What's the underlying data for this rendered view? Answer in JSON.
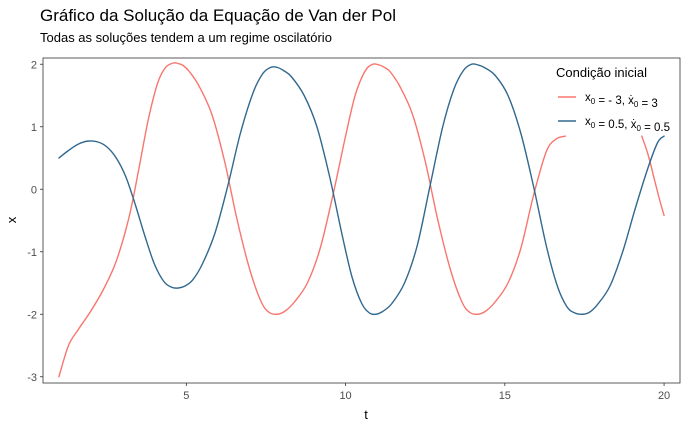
{
  "chart_data": {
    "type": "line",
    "title": "Gráfico da Solução da Equação de Van der Pol",
    "subtitle": "Todas as soluções tendem a um regime oscilatório",
    "xlabel": "t",
    "ylabel": "x",
    "xlim": [
      0.5,
      20.5
    ],
    "ylim": [
      -3.1,
      2.1
    ],
    "x_ticks": [
      5,
      10,
      15,
      20
    ],
    "y_ticks": [
      -3,
      -2,
      -1,
      0,
      1,
      2
    ],
    "grid": false,
    "legend": {
      "title": "Condição inicial",
      "placement": "top-right"
    },
    "series": [
      {
        "name": "x0 = -3, ẋ0 = 3",
        "label_parts": {
          "a": "x",
          "b": "0",
          "c": " = - 3, ",
          "d": "ẋ",
          "e": "0",
          "f": " = 3"
        },
        "color": "#F8766D",
        "segments": [
          {
            "x": [
              1.0,
              1.3,
              1.6,
              2.0,
              2.4,
              2.8,
              3.2,
              3.5,
              3.8,
              4.1,
              4.35,
              4.6,
              4.75,
              4.9,
              5.1,
              5.4,
              5.8,
              6.2,
              6.6,
              7.0,
              7.35,
              7.6,
              7.85,
              8.1,
              8.4,
              8.8,
              9.2,
              9.6,
              10.0,
              10.3,
              10.6,
              10.85,
              11.1,
              11.25,
              11.4,
              11.7,
              12.1,
              12.5,
              12.9,
              13.3,
              13.65,
              13.9,
              14.15,
              14.4,
              14.7,
              15.1,
              15.5,
              15.9,
              16.3,
              16.6,
              16.9
            ],
            "y": [
              -3.0,
              -2.5,
              -2.25,
              -1.95,
              -1.6,
              -1.15,
              -0.45,
              0.3,
              1.1,
              1.7,
              1.95,
              2.02,
              2.01,
              1.98,
              1.88,
              1.65,
              1.2,
              0.45,
              -0.5,
              -1.3,
              -1.8,
              -1.97,
              -2.0,
              -1.95,
              -1.8,
              -1.5,
              -0.95,
              -0.1,
              0.85,
              1.5,
              1.88,
              2.0,
              1.98,
              1.94,
              1.88,
              1.65,
              1.2,
              0.45,
              -0.5,
              -1.3,
              -1.8,
              -1.97,
              -2.0,
              -1.95,
              -1.8,
              -1.5,
              -0.95,
              -0.1,
              0.6,
              0.8,
              0.85
            ]
          },
          {
            "x": [
              19.3,
              19.5,
              19.7,
              19.85,
              20.0
            ],
            "y": [
              0.85,
              0.55,
              0.15,
              -0.15,
              -0.42
            ]
          }
        ]
      },
      {
        "name": "x0 = 0.5, ẋ0 = 0.5",
        "label_parts": {
          "a": "x",
          "b": "0",
          "c": " = 0.5, ",
          "d": "ẋ",
          "e": "0",
          "f": " = 0.5"
        },
        "color": "#31688E",
        "segments": [
          {
            "x": [
              1.0,
              1.3,
              1.6,
              1.9,
              2.2,
              2.5,
              2.8,
              3.1,
              3.4,
              3.7,
              4.0,
              4.3,
              4.55,
              4.75,
              4.95,
              5.2,
              5.5,
              5.9,
              6.3,
              6.7,
              7.1,
              7.4,
              7.65,
              7.85,
              8.05,
              8.3,
              8.7,
              9.1,
              9.5,
              9.9,
              10.2,
              10.5,
              10.75,
              10.95,
              11.15,
              11.45,
              11.85,
              12.25,
              12.65,
              13.05,
              13.4,
              13.7,
              13.95,
              14.15,
              14.35,
              14.7,
              15.1,
              15.5,
              15.9,
              16.3,
              16.65,
              16.95,
              17.2,
              17.45,
              17.65,
              17.9,
              18.3,
              18.7,
              19.1,
              19.5,
              19.8,
              20.0
            ],
            "y": [
              0.5,
              0.62,
              0.72,
              0.77,
              0.76,
              0.68,
              0.5,
              0.2,
              -0.25,
              -0.75,
              -1.2,
              -1.48,
              -1.57,
              -1.58,
              -1.55,
              -1.45,
              -1.2,
              -0.7,
              0.05,
              0.9,
              1.55,
              1.85,
              1.95,
              1.95,
              1.9,
              1.8,
              1.5,
              1.0,
              0.2,
              -0.75,
              -1.4,
              -1.82,
              -1.98,
              -2.0,
              -1.96,
              -1.83,
              -1.5,
              -0.9,
              0.05,
              1.0,
              1.6,
              1.9,
              2.0,
              1.99,
              1.95,
              1.82,
              1.5,
              0.9,
              0.05,
              -0.9,
              -1.55,
              -1.88,
              -1.98,
              -2.0,
              -1.97,
              -1.85,
              -1.55,
              -1.0,
              -0.3,
              0.35,
              0.75,
              0.85
            ]
          }
        ]
      }
    ]
  }
}
